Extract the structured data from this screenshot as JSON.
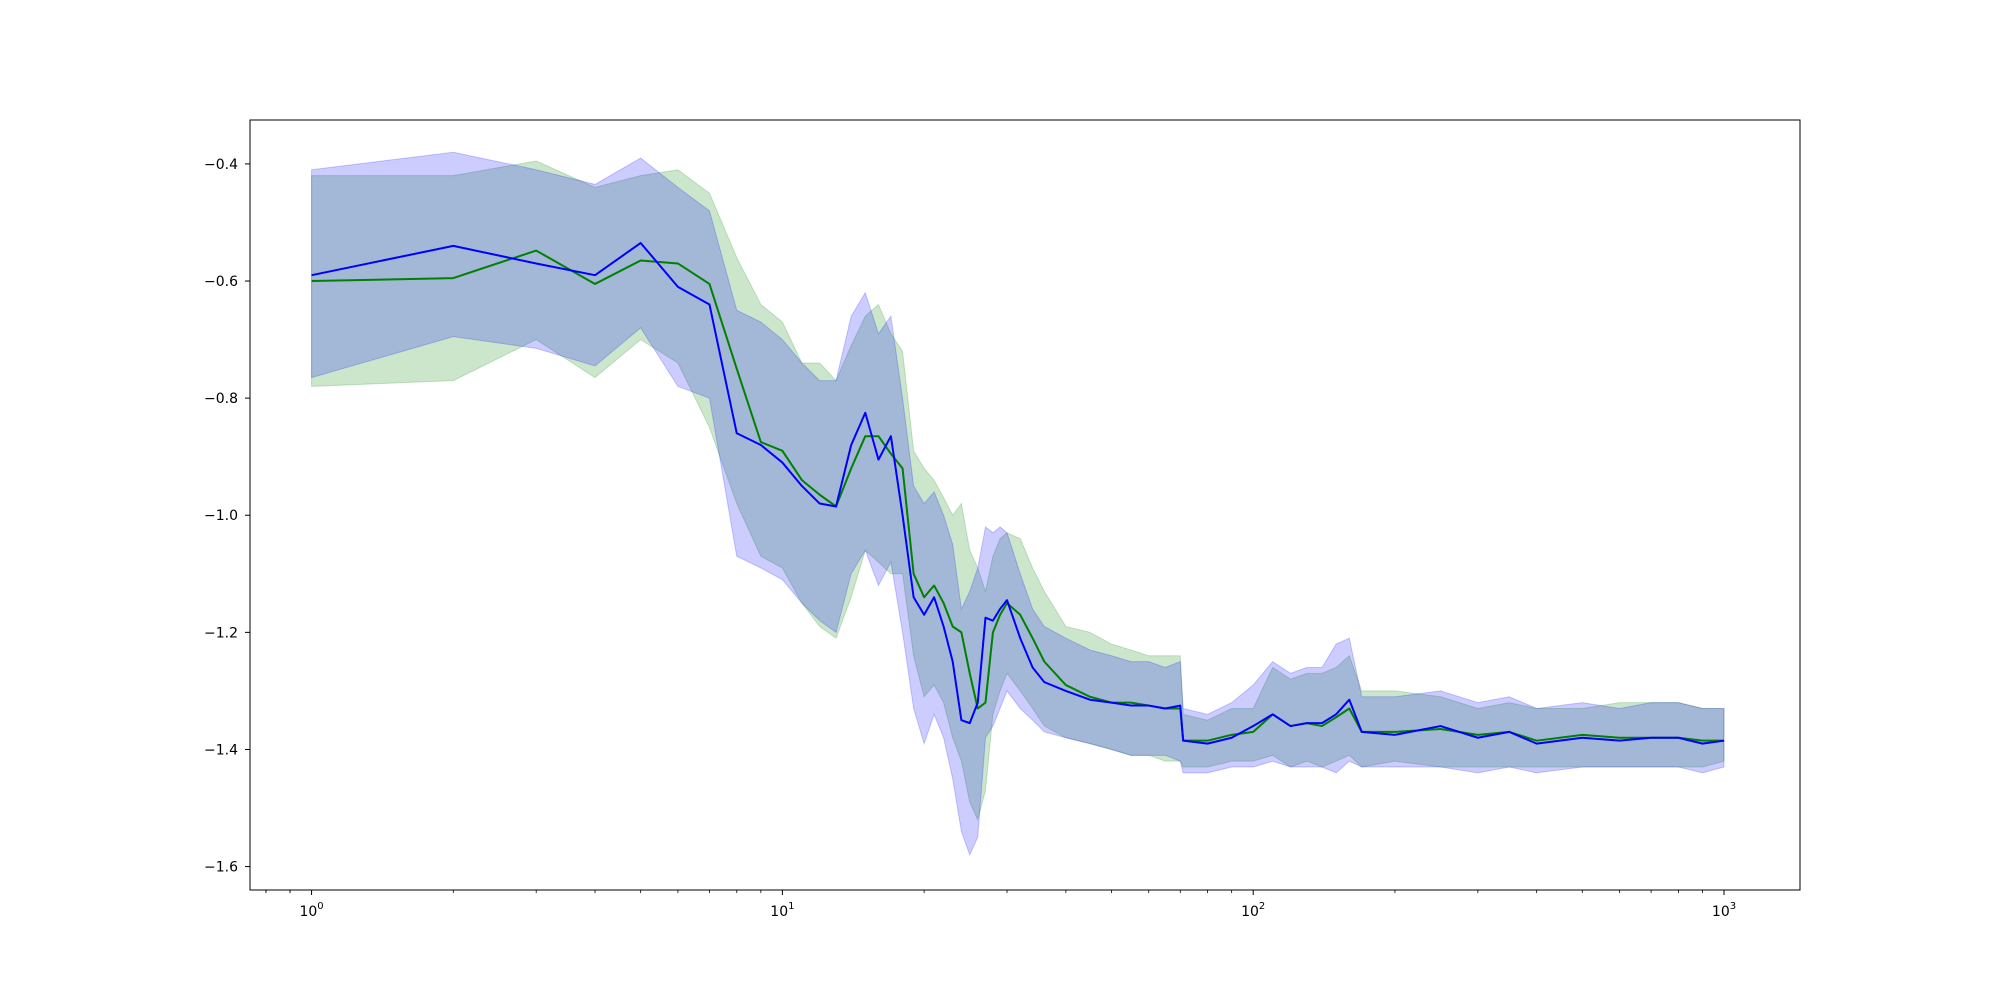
{
  "chart_data": {
    "type": "line",
    "title": "",
    "xlabel": "",
    "ylabel": "",
    "xscale": "log",
    "xlim": [
      0.74,
      1450
    ],
    "ylim": [
      -1.64,
      -0.325
    ],
    "grid": false,
    "legend": "none",
    "x_ticks": [
      {
        "value": 1,
        "mantissa": "10",
        "exp": "0"
      },
      {
        "value": 10,
        "mantissa": "10",
        "exp": "1"
      },
      {
        "value": 100,
        "mantissa": "10",
        "exp": "2"
      },
      {
        "value": 1000,
        "mantissa": "10",
        "exp": "3"
      }
    ],
    "y_ticks": [
      {
        "value": -0.4,
        "label": "−0.4"
      },
      {
        "value": -0.6,
        "label": "−0.6"
      },
      {
        "value": -0.8,
        "label": "−0.8"
      },
      {
        "value": -1.0,
        "label": "−1.0"
      },
      {
        "value": -1.2,
        "label": "−1.2"
      },
      {
        "value": -1.4,
        "label": "−1.4"
      },
      {
        "value": -1.6,
        "label": "−1.6"
      }
    ],
    "series": [
      {
        "color": "#008000",
        "band_color": "#008000",
        "band_opacity": 0.2,
        "x": [
          1,
          2,
          3,
          4,
          5,
          6,
          7,
          8,
          9,
          10,
          11,
          12,
          13,
          14,
          15,
          16,
          17,
          18,
          19,
          20,
          21,
          22,
          23,
          24,
          25,
          26,
          27,
          28,
          29,
          30,
          32,
          34,
          36,
          40,
          45,
          50,
          55,
          60,
          65,
          70,
          71,
          80,
          90,
          100,
          110,
          120,
          130,
          140,
          150,
          160,
          170,
          200,
          250,
          300,
          350,
          400,
          500,
          600,
          700,
          800,
          900,
          1000
        ],
        "y": [
          -0.6,
          -0.595,
          -0.548,
          -0.605,
          -0.565,
          -0.57,
          -0.605,
          -0.75,
          -0.875,
          -0.89,
          -0.94,
          -0.965,
          -0.985,
          -0.92,
          -0.865,
          -0.865,
          -0.895,
          -0.92,
          -1.1,
          -1.14,
          -1.12,
          -1.15,
          -1.19,
          -1.2,
          -1.27,
          -1.33,
          -1.32,
          -1.2,
          -1.17,
          -1.15,
          -1.17,
          -1.21,
          -1.25,
          -1.29,
          -1.31,
          -1.32,
          -1.32,
          -1.325,
          -1.33,
          -1.33,
          -1.385,
          -1.385,
          -1.375,
          -1.37,
          -1.34,
          -1.36,
          -1.355,
          -1.36,
          -1.345,
          -1.33,
          -1.37,
          -1.37,
          -1.365,
          -1.375,
          -1.37,
          -1.385,
          -1.375,
          -1.38,
          -1.38,
          -1.38,
          -1.385,
          -1.385
        ],
        "lower": [
          -0.78,
          -0.77,
          -0.7,
          -0.765,
          -0.7,
          -0.74,
          -0.85,
          -0.98,
          -1.07,
          -1.09,
          -1.15,
          -1.19,
          -1.21,
          -1.14,
          -1.06,
          -1.08,
          -1.1,
          -1.1,
          -1.24,
          -1.31,
          -1.29,
          -1.32,
          -1.38,
          -1.42,
          -1.49,
          -1.52,
          -1.47,
          -1.34,
          -1.3,
          -1.27,
          -1.3,
          -1.33,
          -1.36,
          -1.38,
          -1.39,
          -1.4,
          -1.41,
          -1.41,
          -1.42,
          -1.42,
          -1.43,
          -1.43,
          -1.42,
          -1.42,
          -1.41,
          -1.43,
          -1.42,
          -1.43,
          -1.42,
          -1.41,
          -1.43,
          -1.42,
          -1.43,
          -1.43,
          -1.43,
          -1.43,
          -1.43,
          -1.43,
          -1.43,
          -1.43,
          -1.43,
          -1.42
        ],
        "upper": [
          -0.42,
          -0.42,
          -0.395,
          -0.44,
          -0.42,
          -0.41,
          -0.45,
          -0.56,
          -0.64,
          -0.67,
          -0.74,
          -0.74,
          -0.77,
          -0.71,
          -0.66,
          -0.64,
          -0.69,
          -0.72,
          -0.89,
          -0.92,
          -0.94,
          -0.97,
          -1.0,
          -0.98,
          -1.06,
          -1.09,
          -1.13,
          -1.07,
          -1.04,
          -1.03,
          -1.04,
          -1.09,
          -1.13,
          -1.19,
          -1.2,
          -1.22,
          -1.23,
          -1.24,
          -1.24,
          -1.24,
          -1.34,
          -1.35,
          -1.33,
          -1.33,
          -1.26,
          -1.28,
          -1.27,
          -1.27,
          -1.26,
          -1.24,
          -1.3,
          -1.3,
          -1.31,
          -1.33,
          -1.32,
          -1.33,
          -1.33,
          -1.32,
          -1.32,
          -1.32,
          -1.33,
          -1.33
        ]
      },
      {
        "color": "#0000ff",
        "band_color": "#0000ff",
        "band_opacity": 0.2,
        "x": [
          1,
          2,
          3,
          4,
          5,
          6,
          7,
          8,
          9,
          10,
          11,
          12,
          13,
          14,
          15,
          16,
          17,
          18,
          19,
          20,
          21,
          22,
          23,
          24,
          25,
          26,
          27,
          28,
          29,
          30,
          32,
          34,
          36,
          40,
          45,
          50,
          55,
          60,
          65,
          70,
          71,
          80,
          90,
          100,
          110,
          120,
          130,
          140,
          150,
          160,
          170,
          200,
          250,
          300,
          350,
          400,
          500,
          600,
          700,
          800,
          900,
          1000
        ],
        "y": [
          -0.59,
          -0.54,
          -0.57,
          -0.59,
          -0.535,
          -0.61,
          -0.64,
          -0.86,
          -0.88,
          -0.91,
          -0.95,
          -0.98,
          -0.985,
          -0.88,
          -0.825,
          -0.905,
          -0.865,
          -1.0,
          -1.14,
          -1.17,
          -1.14,
          -1.19,
          -1.25,
          -1.35,
          -1.355,
          -1.32,
          -1.175,
          -1.18,
          -1.16,
          -1.145,
          -1.21,
          -1.26,
          -1.285,
          -1.3,
          -1.315,
          -1.32,
          -1.325,
          -1.325,
          -1.33,
          -1.325,
          -1.385,
          -1.39,
          -1.38,
          -1.36,
          -1.34,
          -1.36,
          -1.355,
          -1.355,
          -1.34,
          -1.315,
          -1.37,
          -1.375,
          -1.36,
          -1.38,
          -1.37,
          -1.39,
          -1.38,
          -1.385,
          -1.38,
          -1.38,
          -1.39,
          -1.385
        ],
        "lower": [
          -0.765,
          -0.695,
          -0.715,
          -0.745,
          -0.68,
          -0.78,
          -0.8,
          -1.07,
          -1.09,
          -1.11,
          -1.15,
          -1.18,
          -1.2,
          -1.1,
          -1.06,
          -1.12,
          -1.08,
          -1.2,
          -1.33,
          -1.39,
          -1.34,
          -1.38,
          -1.45,
          -1.54,
          -1.58,
          -1.55,
          -1.38,
          -1.36,
          -1.33,
          -1.3,
          -1.33,
          -1.35,
          -1.37,
          -1.38,
          -1.39,
          -1.4,
          -1.41,
          -1.41,
          -1.41,
          -1.42,
          -1.44,
          -1.44,
          -1.43,
          -1.43,
          -1.42,
          -1.43,
          -1.43,
          -1.43,
          -1.44,
          -1.42,
          -1.43,
          -1.43,
          -1.43,
          -1.44,
          -1.43,
          -1.44,
          -1.43,
          -1.43,
          -1.43,
          -1.43,
          -1.44,
          -1.43
        ],
        "upper": [
          -0.41,
          -0.38,
          -0.41,
          -0.435,
          -0.39,
          -0.44,
          -0.48,
          -0.65,
          -0.67,
          -0.7,
          -0.74,
          -0.77,
          -0.77,
          -0.66,
          -0.62,
          -0.69,
          -0.66,
          -0.8,
          -0.95,
          -0.98,
          -0.96,
          -1.0,
          -1.05,
          -1.16,
          -1.13,
          -1.09,
          -1.02,
          -1.03,
          -1.02,
          -1.03,
          -1.1,
          -1.16,
          -1.19,
          -1.21,
          -1.23,
          -1.24,
          -1.25,
          -1.25,
          -1.26,
          -1.25,
          -1.33,
          -1.34,
          -1.32,
          -1.29,
          -1.25,
          -1.27,
          -1.26,
          -1.26,
          -1.22,
          -1.21,
          -1.31,
          -1.31,
          -1.3,
          -1.32,
          -1.31,
          -1.33,
          -1.32,
          -1.33,
          -1.32,
          -1.32,
          -1.33,
          -1.33
        ]
      }
    ]
  }
}
